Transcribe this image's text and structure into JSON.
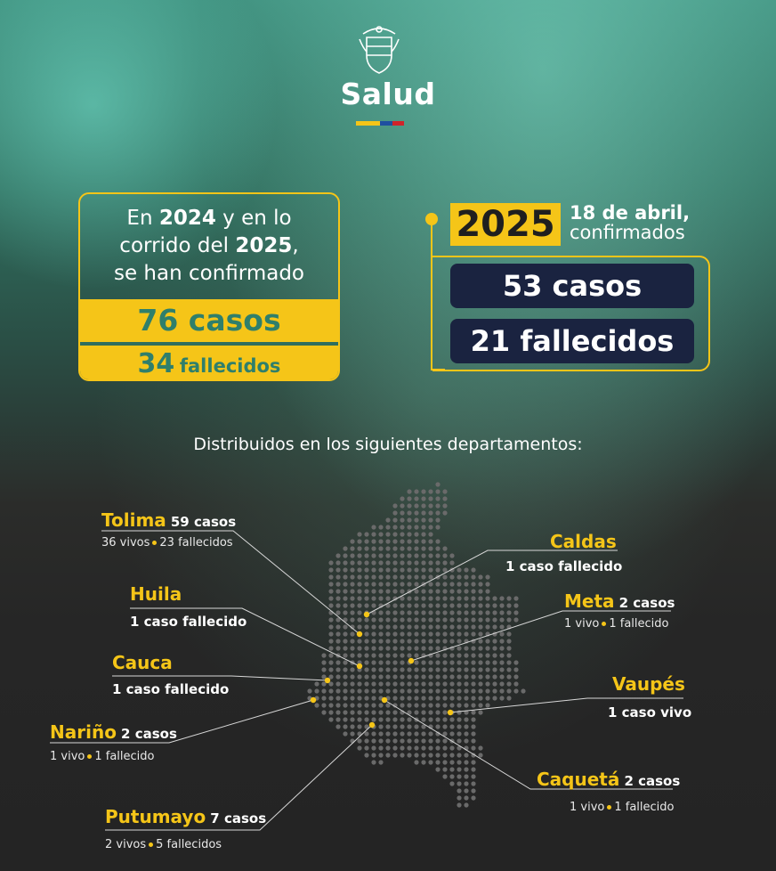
{
  "header": {
    "brand": "Salud",
    "flag_colors": [
      "#f5c518",
      "#1f4fa0",
      "#d1232a"
    ]
  },
  "summary_all": {
    "line1_pre": "En ",
    "line1_year": "2024",
    "line1_post": " y en lo",
    "line2_pre": "corrido del ",
    "line2_year": "2025",
    "line2_post": ",",
    "line3": "se han confirmado",
    "cases": "76 casos",
    "deaths_num": "34",
    "deaths_word": "fallecidos"
  },
  "summary_2025": {
    "year": "2025",
    "date": "18 de abril,",
    "note": "confirmados",
    "cases": "53 casos",
    "deaths": "21 fallecidos"
  },
  "distribution_title": "Distribuidos en los siguientes departamentos:",
  "departments": {
    "tolima": {
      "name": "Tolima",
      "count": "59 casos",
      "alive": "36 vivos",
      "dead": "23 fallecidos"
    },
    "caldas": {
      "name": "Caldas",
      "detail": "1 caso fallecido"
    },
    "huila": {
      "name": "Huila",
      "detail": "1 caso fallecido"
    },
    "meta": {
      "name": "Meta",
      "count": "2 casos",
      "alive": "1 vivo",
      "dead": "1 fallecido"
    },
    "cauca": {
      "name": "Cauca",
      "detail": "1 caso fallecido"
    },
    "vaupes": {
      "name": "Vaupés",
      "detail": "1 caso vivo"
    },
    "narino": {
      "name": "Nariño",
      "count": "2 casos",
      "alive": "1 vivo",
      "dead": "1 fallecido"
    },
    "caqueta": {
      "name": "Caquetá",
      "count": "2 casos",
      "alive": "1 vivo",
      "dead": "1 fallecido"
    },
    "putumayo": {
      "name": "Putumayo",
      "count": "7 casos",
      "alive": "2 vivos",
      "dead": "5 fallecidos"
    }
  },
  "colors": {
    "accent_yellow": "#f5c518",
    "teal_text": "#2f7f6b",
    "navy_pill": "#1a2340"
  }
}
